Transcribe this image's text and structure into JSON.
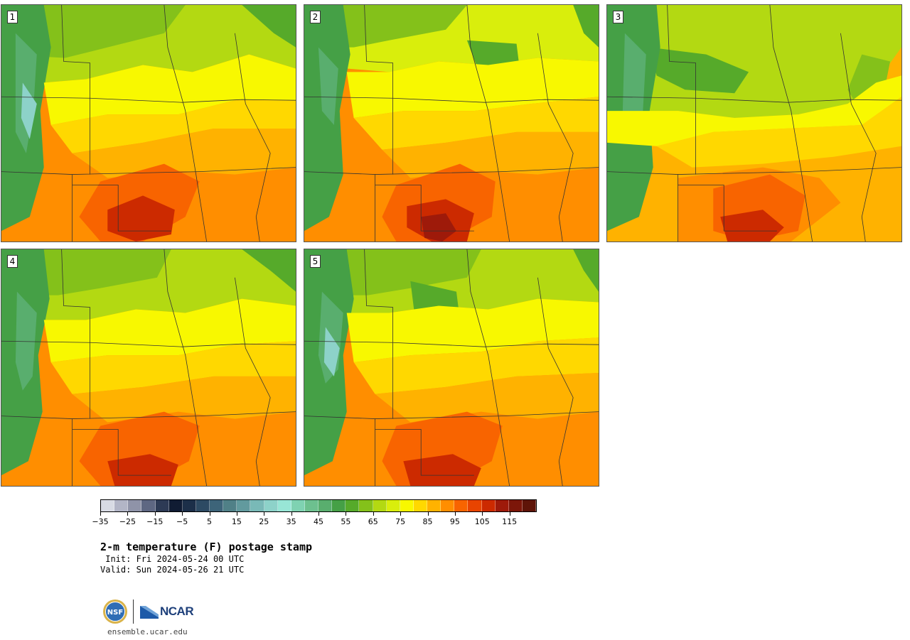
{
  "panels": [
    {
      "label": "1"
    },
    {
      "label": "2"
    },
    {
      "label": "3"
    },
    {
      "label": "4"
    },
    {
      "label": "5"
    }
  ],
  "colorbar": {
    "colors": [
      "#d8dbe4",
      "#b2b5c6",
      "#8f93a8",
      "#5e6782",
      "#2d3a55",
      "#101c33",
      "#1c2f49",
      "#2d4a63",
      "#3d6479",
      "#508087",
      "#629a9e",
      "#79b9b7",
      "#8dd2c9",
      "#98e6d6",
      "#7fd2b2",
      "#6dc08f",
      "#59ae6e",
      "#45a046",
      "#56aa2a",
      "#84c11a",
      "#b3d912",
      "#d9ee0c",
      "#f8f800",
      "#ffd800",
      "#ffb200",
      "#ff8e00",
      "#f86400",
      "#e84400",
      "#cc2a00",
      "#9e1a0a",
      "#7c1609",
      "#5e1408"
    ],
    "tick_labels": [
      "−35",
      "−25",
      "−15",
      "−5",
      "5",
      "15",
      "25",
      "35",
      "45",
      "55",
      "65",
      "75",
      "85",
      "95",
      "105",
      "115"
    ]
  },
  "title": "2-m temperature (F) postage stamp",
  "init": " Init: Fri 2024-05-24 00 UTC",
  "valid": "Valid: Sun 2024-05-26 21 UTC",
  "logos": {
    "nsf": "NSF",
    "ncar": "NCAR"
  },
  "site": "ensemble.ucar.edu"
}
